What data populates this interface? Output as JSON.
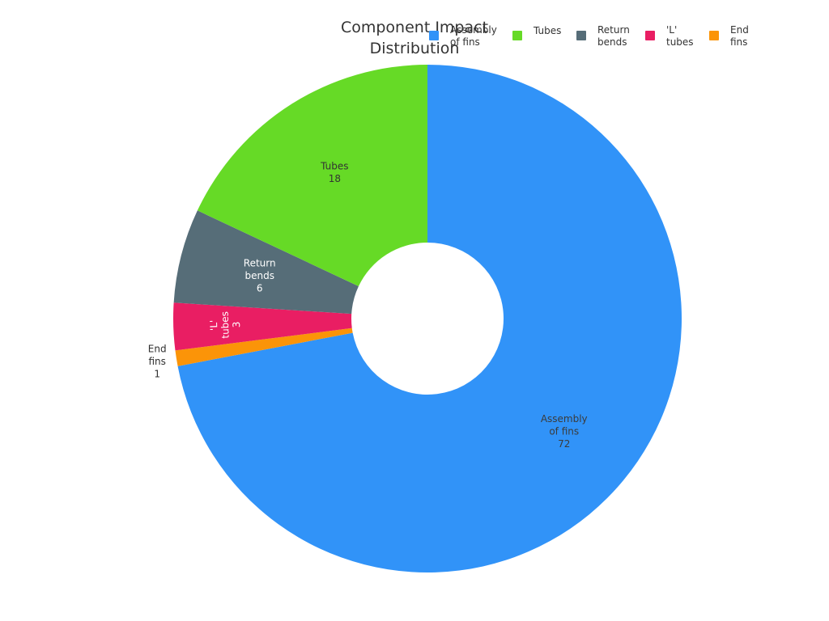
{
  "chart_data": {
    "type": "pie",
    "title": "Component Impact Distribution",
    "title_lines": [
      "Component Impact",
      "Distribution"
    ],
    "donut": true,
    "legend_position": "top-right",
    "slices": [
      {
        "label": "Assembly of fins",
        "label_lines": [
          "Assembly",
          "of fins"
        ],
        "value": 72,
        "color": "#3193f8",
        "label_color": "#3b3b3b"
      },
      {
        "label": "End fins",
        "label_lines": [
          "End",
          "fins"
        ],
        "value": 1,
        "color": "#fb9408",
        "label_color": "#2f2f2f"
      },
      {
        "label": "'L' tubes",
        "label_lines": [
          "'L'",
          "tubes"
        ],
        "value": 3,
        "color": "#e91e63",
        "label_color": "#ffffff"
      },
      {
        "label": "Return bends",
        "label_lines": [
          "Return",
          "bends"
        ],
        "value": 6,
        "color": "#566d78",
        "label_color": "#ffffff"
      },
      {
        "label": "Tubes",
        "label_lines": [
          "Tubes"
        ],
        "value": 18,
        "color": "#66da26",
        "label_color": "#333333"
      }
    ],
    "legend": [
      {
        "label_lines": [
          "Assembly",
          "of fins"
        ],
        "color": "#3193f8"
      },
      {
        "label_lines": [
          "Tubes"
        ],
        "color": "#66da26"
      },
      {
        "label_lines": [
          "Return",
          "bends"
        ],
        "color": "#566d78"
      },
      {
        "label_lines": [
          "'L'",
          "tubes"
        ],
        "color": "#e91e63"
      },
      {
        "label_lines": [
          "End",
          "fins"
        ],
        "color": "#fb9408"
      }
    ]
  }
}
